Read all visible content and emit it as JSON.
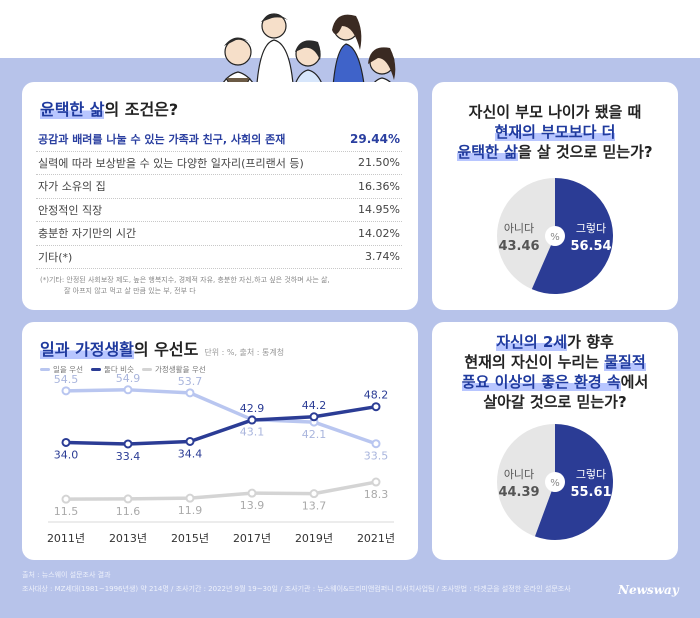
{
  "survey": {
    "title_hl": "윤택한 삶",
    "title_rest": "의 조건은?",
    "rows": [
      {
        "label": "공감과 배려를 나눌 수 있는 가족과 친구, 사회의 존재",
        "pct": "29.44%"
      },
      {
        "label": "실력에 따라 보상받을 수 있는 다양한 일자리(프리랜서 등)",
        "pct": "21.50%"
      },
      {
        "label": "자가 소유의 집",
        "pct": "16.36%"
      },
      {
        "label": "안정적인 직장",
        "pct": "14.95%"
      },
      {
        "label": "충분한 자기만의 시간",
        "pct": "14.02%"
      },
      {
        "label": "기타(*)",
        "pct": "3.74%"
      }
    ],
    "note_line1": "(*)기타: 안정된 사회보장 제도, 높은 행복지수, 경제적 자유, 충분한 자신,하고 싶은 것하며 사는 삶,",
    "note_line2": "잘 아프지 않고 먹고 살 만큼 있는 부, 전부 다"
  },
  "priority": {
    "title_hl": "일과 가정생활",
    "title_rest": "의 우선도",
    "unit": "단위 : %, 출처 : 통계청",
    "legend": [
      "일을 우선",
      "둘다 비슷",
      "가정생활을 우선"
    ]
  },
  "parents_pie": {
    "title_line1": "자신이 부모 나이가 됐을 때",
    "title_line2_hl": "현재의 부모보다 더",
    "title_line3_hl": "윤택한 삶",
    "title_line3_rest": "을 살 것으로 믿는가?",
    "yes_label": "그렇다",
    "yes_value": "56.54",
    "no_label": "아니다",
    "no_value": "43.46",
    "unit": "%"
  },
  "children_pie": {
    "title_line1_hl": "자신의 2세",
    "title_line1_rest": "가 향후",
    "title_line2": "현재의 자신이 누리는 ",
    "title_line2_hl": "물질적",
    "title_line3_hl": "풍요 이상의 좋은 환경 속",
    "title_line3_rest": "에서",
    "title_line4": "살아갈 것으로 믿는가?",
    "yes_label": "그렇다",
    "yes_value": "55.61",
    "no_label": "아니다",
    "no_value": "44.39",
    "unit": "%"
  },
  "footer": {
    "source": "출처 : 뉴스웨이 설문조사 결과",
    "details": "조사대상 : MZ세대(1981~1996년생) 약 214명 / 조사기간 : 2022년 9월 19~30일 / 조사기관 : 뉴스웨이&드리미앤컴퍼니 리서치사업팀 / 조사방법 : 타겟군을 설정한 온라인 설문조사"
  },
  "brand": "Newsway",
  "colors": {
    "navy": "#2b3c95",
    "light_blue": "#b9c6f0",
    "gray": "#d4d4d4",
    "background": "#b7c3ea"
  },
  "chart_data": [
    {
      "type": "line",
      "title": "일과 가정생활의 우선도",
      "x": [
        "2011년",
        "2013년",
        "2015년",
        "2017년",
        "2019년",
        "2021년"
      ],
      "series": [
        {
          "name": "일을 우선",
          "values": [
            54.5,
            54.9,
            53.7,
            43.1,
            42.1,
            33.5
          ]
        },
        {
          "name": "둘다 비슷",
          "values": [
            34.0,
            33.4,
            34.4,
            42.9,
            44.2,
            48.2
          ]
        },
        {
          "name": "가정생활을 우선",
          "values": [
            11.5,
            11.6,
            11.9,
            13.9,
            13.7,
            18.3
          ]
        }
      ],
      "labels": [
        [
          "54.5",
          "54.9",
          "53.7",
          "43.1",
          "42.1",
          "33.5"
        ],
        [
          "34.0",
          "33.4",
          "34.4",
          "42.9",
          "44.2",
          "48.2"
        ],
        [
          "11.5",
          "11.6",
          "11.9",
          "13.9",
          "13.7",
          "18.3"
        ]
      ],
      "ylim": [
        8,
        58
      ]
    },
    {
      "type": "pie",
      "categories": [
        "그렇다",
        "아니다"
      ],
      "values": [
        56.54,
        43.46
      ]
    },
    {
      "type": "pie",
      "categories": [
        "그렇다",
        "아니다"
      ],
      "values": [
        55.61,
        44.39
      ]
    }
  ]
}
